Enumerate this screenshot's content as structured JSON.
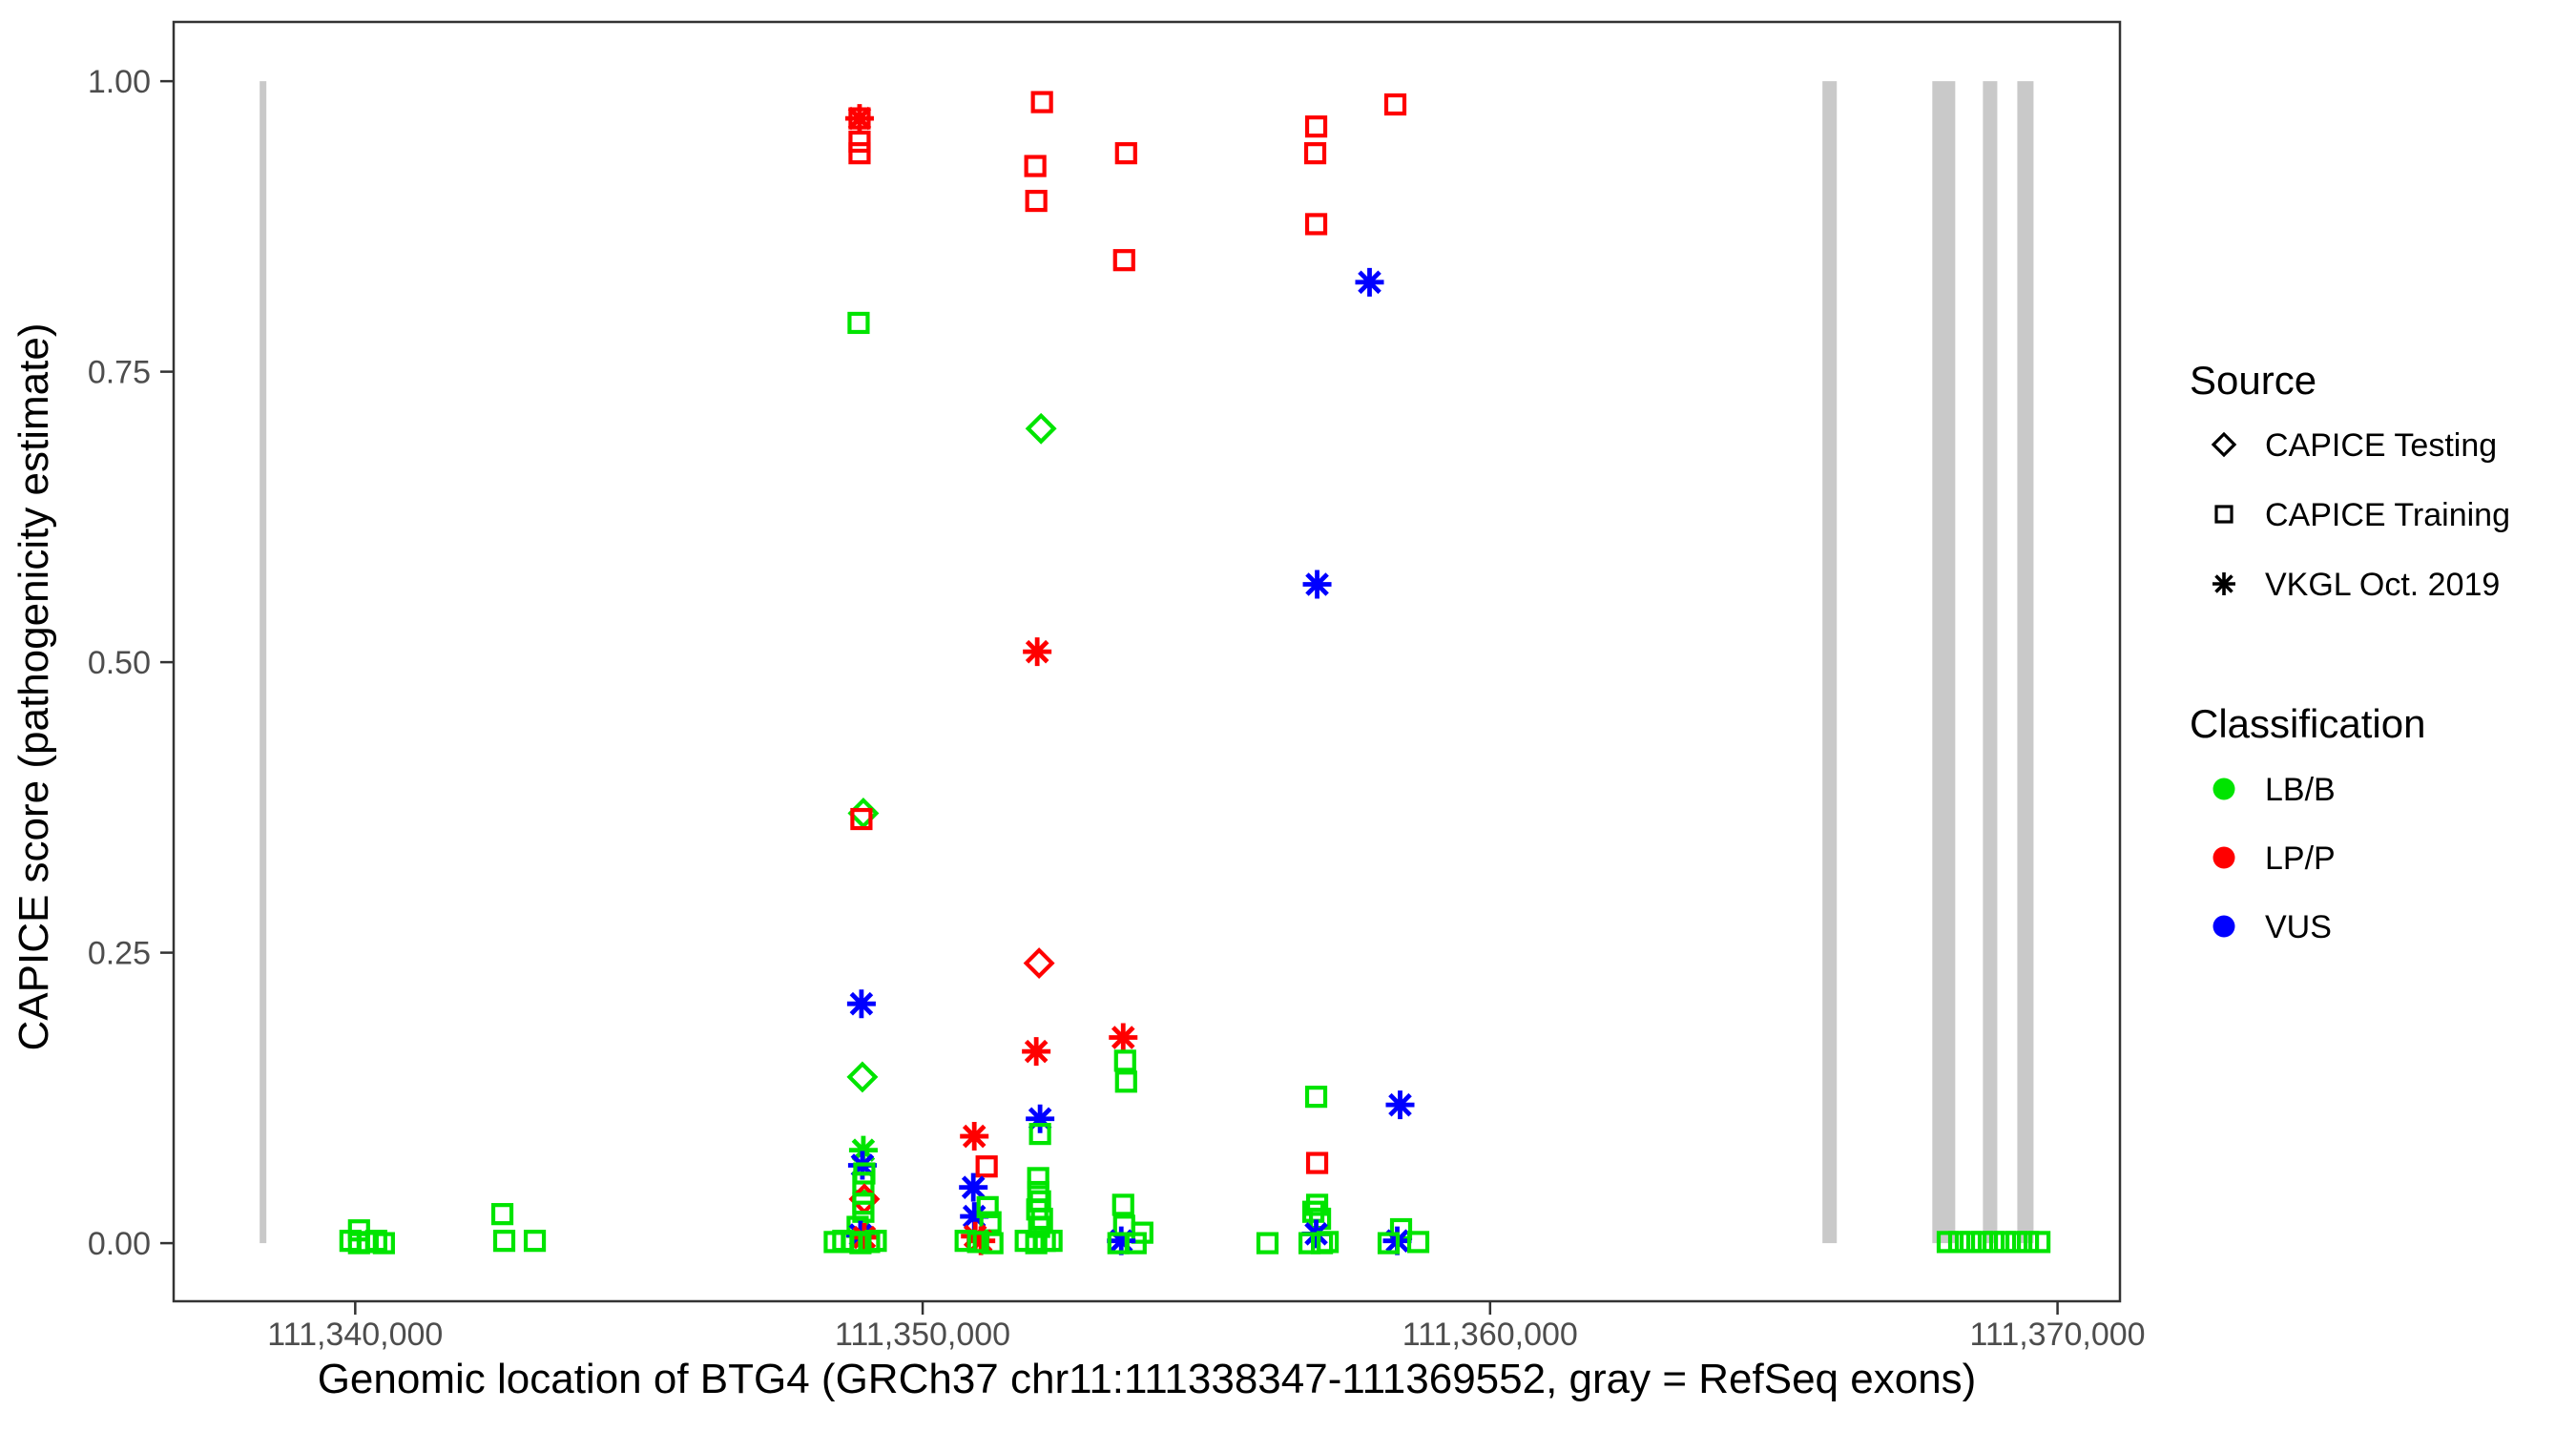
{
  "figure": {
    "background": "#FFFFFF",
    "panel_border_color": "#333333",
    "axis_title_color": "#000000",
    "tick_label_color": "#4D4D4D",
    "tick_mark_color": "#333333",
    "exon_color": "#C9C9C9",
    "legend_glyph_color": "#000000"
  },
  "chart_data": {
    "type": "scatter",
    "title": "",
    "xlabel": "Genomic location of BTG4 (GRCh37 chr11:111338347-111369552, gray = RefSeq exons)",
    "ylabel": "CAPICE score (pathogenicity estimate)",
    "xlim": [
      111336800,
      111371100
    ],
    "ylim": [
      -0.05,
      1.051
    ],
    "grid": "off",
    "x_ticks": [
      {
        "value": 111340000,
        "label": "111,340,000"
      },
      {
        "value": 111350000,
        "label": "111,350,000"
      },
      {
        "value": 111360000,
        "label": "111,360,000"
      },
      {
        "value": 111370000,
        "label": "111,370,000"
      }
    ],
    "y_ticks": [
      {
        "value": 0.0,
        "label": "0.00"
      },
      {
        "value": 0.25,
        "label": "0.25"
      },
      {
        "value": 0.5,
        "label": "0.50"
      },
      {
        "value": 0.75,
        "label": "0.75"
      },
      {
        "value": 1.0,
        "label": "1.00"
      }
    ],
    "exons_note": "gray vertical bars = RefSeq exons, drawn spanning score 0 to 1",
    "exons": [
      [
        111338316,
        111338434
      ],
      [
        111365857,
        111366110
      ],
      [
        111367793,
        111368197
      ],
      [
        111368685,
        111368938
      ],
      [
        111369291,
        111369577
      ]
    ],
    "marker_by_source": {
      "testing": "diamond",
      "training": "square",
      "vkgl": "asterisk"
    },
    "color_by_classification": {
      "LB/B": "#00E400",
      "LP/P": "#FF0000",
      "VUS": "#0000FF"
    },
    "point_format": [
      "genomic_position",
      "capice_score",
      "source",
      "classification"
    ],
    "points": [
      [
        111340067,
        0.011,
        "training",
        "LB/B"
      ],
      [
        111339916,
        0.002,
        "training",
        "LB/B"
      ],
      [
        111340067,
        0.0,
        "training",
        "LB/B"
      ],
      [
        111340219,
        0.001,
        "training",
        "LB/B"
      ],
      [
        111340370,
        0.002,
        "training",
        "LB/B"
      ],
      [
        111340505,
        0.0,
        "training",
        "LB/B"
      ],
      [
        111342593,
        0.025,
        "training",
        "LB/B"
      ],
      [
        111342626,
        0.002,
        "training",
        "LB/B"
      ],
      [
        111343165,
        0.002,
        "training",
        "LB/B"
      ],
      [
        111348888,
        0.968,
        "training",
        "LP/P"
      ],
      [
        111348888,
        0.968,
        "vkgl",
        "LP/P"
      ],
      [
        111348888,
        0.948,
        "training",
        "LP/P"
      ],
      [
        111348888,
        0.938,
        "training",
        "LP/P"
      ],
      [
        111348871,
        0.792,
        "training",
        "LB/B"
      ],
      [
        111348955,
        0.37,
        "testing",
        "LB/B"
      ],
      [
        111348921,
        0.365,
        "training",
        "LP/P"
      ],
      [
        111348921,
        0.206,
        "vkgl",
        "VUS"
      ],
      [
        111348938,
        0.143,
        "testing",
        "LB/B"
      ],
      [
        111348955,
        0.08,
        "vkgl",
        "LB/B"
      ],
      [
        111348938,
        0.067,
        "vkgl",
        "VUS"
      ],
      [
        111348972,
        0.06,
        "training",
        "LB/B"
      ],
      [
        111348955,
        0.052,
        "training",
        "LB/B"
      ],
      [
        111348972,
        0.038,
        "testing",
        "LP/P"
      ],
      [
        111348955,
        0.034,
        "training",
        "LB/B"
      ],
      [
        111348955,
        0.027,
        "training",
        "LB/B"
      ],
      [
        111348854,
        0.014,
        "training",
        "LB/B"
      ],
      [
        111348904,
        0.007,
        "vkgl",
        "VUS"
      ],
      [
        111348972,
        0.005,
        "vkgl",
        "LP/P"
      ],
      [
        111348451,
        0.001,
        "training",
        "LB/B"
      ],
      [
        111348601,
        0.002,
        "training",
        "LB/B"
      ],
      [
        111348753,
        0.001,
        "training",
        "LB/B"
      ],
      [
        111348904,
        0.0,
        "training",
        "LB/B"
      ],
      [
        111349056,
        0.001,
        "training",
        "LB/B"
      ],
      [
        111349174,
        0.002,
        "training",
        "LB/B"
      ],
      [
        111350910,
        0.092,
        "vkgl",
        "LP/P"
      ],
      [
        111351128,
        0.066,
        "training",
        "LP/P"
      ],
      [
        111350893,
        0.048,
        "vkgl",
        "VUS"
      ],
      [
        111350910,
        0.023,
        "vkgl",
        "VUS"
      ],
      [
        111351145,
        0.031,
        "training",
        "LB/B"
      ],
      [
        111351195,
        0.018,
        "training",
        "LB/B"
      ],
      [
        111350927,
        0.006,
        "vkgl",
        "LP/P"
      ],
      [
        111351027,
        0.002,
        "vkgl",
        "LP/P"
      ],
      [
        111350758,
        0.002,
        "training",
        "LB/B"
      ],
      [
        111350977,
        0.001,
        "training",
        "LB/B"
      ],
      [
        111351229,
        0.0,
        "training",
        "LB/B"
      ],
      [
        111352103,
        0.982,
        "training",
        "LP/P"
      ],
      [
        111351985,
        0.927,
        "training",
        "LP/P"
      ],
      [
        111352002,
        0.897,
        "training",
        "LP/P"
      ],
      [
        111352086,
        0.701,
        "testing",
        "LB/B"
      ],
      [
        111352019,
        0.509,
        "vkgl",
        "LP/P"
      ],
      [
        111352052,
        0.241,
        "testing",
        "LP/P"
      ],
      [
        111352002,
        0.165,
        "vkgl",
        "LP/P"
      ],
      [
        111352069,
        0.107,
        "vkgl",
        "VUS"
      ],
      [
        111352069,
        0.094,
        "training",
        "LB/B"
      ],
      [
        111352036,
        0.056,
        "training",
        "LB/B"
      ],
      [
        111352036,
        0.044,
        "training",
        "LB/B"
      ],
      [
        111352069,
        0.036,
        "training",
        "LB/B"
      ],
      [
        111352019,
        0.029,
        "training",
        "LB/B"
      ],
      [
        111352103,
        0.021,
        "training",
        "LB/B"
      ],
      [
        111352052,
        0.014,
        "training",
        "LB/B"
      ],
      [
        111351817,
        0.002,
        "training",
        "LB/B"
      ],
      [
        111352002,
        0.0,
        "training",
        "LB/B"
      ],
      [
        111352153,
        0.002,
        "training",
        "LB/B"
      ],
      [
        111352271,
        0.002,
        "training",
        "LB/B"
      ],
      [
        111353585,
        0.938,
        "training",
        "LP/P"
      ],
      [
        111353551,
        0.846,
        "training",
        "LP/P"
      ],
      [
        111353534,
        0.177,
        "vkgl",
        "LP/P"
      ],
      [
        111353568,
        0.157,
        "training",
        "LB/B"
      ],
      [
        111353585,
        0.139,
        "training",
        "LB/B"
      ],
      [
        111353534,
        0.033,
        "training",
        "LB/B"
      ],
      [
        111353551,
        0.015,
        "training",
        "LB/B"
      ],
      [
        111353871,
        0.009,
        "training",
        "LB/B"
      ],
      [
        111353500,
        0.002,
        "vkgl",
        "VUS"
      ],
      [
        111353450,
        0.0,
        "training",
        "LB/B"
      ],
      [
        111353753,
        0.0,
        "training",
        "LB/B"
      ],
      [
        111356077,
        0.0,
        "training",
        "LB/B"
      ],
      [
        111358330,
        0.98,
        "training",
        "LP/P"
      ],
      [
        111356935,
        0.961,
        "training",
        "LP/P"
      ],
      [
        111356918,
        0.938,
        "training",
        "LP/P"
      ],
      [
        111356935,
        0.877,
        "training",
        "LP/P"
      ],
      [
        111357876,
        0.827,
        "vkgl",
        "VUS"
      ],
      [
        111356952,
        0.567,
        "vkgl",
        "VUS"
      ],
      [
        111356935,
        0.126,
        "training",
        "LB/B"
      ],
      [
        111358414,
        0.119,
        "vkgl",
        "VUS"
      ],
      [
        111356952,
        0.069,
        "training",
        "LP/P"
      ],
      [
        111356952,
        0.033,
        "training",
        "LB/B"
      ],
      [
        111356885,
        0.027,
        "training",
        "LB/B"
      ],
      [
        111357003,
        0.021,
        "training",
        "LB/B"
      ],
      [
        111356935,
        0.008,
        "vkgl",
        "VUS"
      ],
      [
        111356818,
        0.0,
        "training",
        "LB/B"
      ],
      [
        111357037,
        0.0,
        "training",
        "LB/B"
      ],
      [
        111357138,
        0.001,
        "training",
        "LB/B"
      ],
      [
        111358431,
        0.012,
        "training",
        "LB/B"
      ],
      [
        111358364,
        0.002,
        "vkgl",
        "VUS"
      ],
      [
        111358212,
        0.0,
        "training",
        "LB/B"
      ],
      [
        111358734,
        0.001,
        "training",
        "LB/B"
      ],
      [
        111368065,
        0.001,
        "training",
        "LB/B"
      ],
      [
        111368267,
        0.001,
        "training",
        "LB/B"
      ],
      [
        111368469,
        0.001,
        "training",
        "LB/B"
      ],
      [
        111368671,
        0.001,
        "training",
        "LB/B"
      ],
      [
        111368873,
        0.001,
        "training",
        "LB/B"
      ],
      [
        111369075,
        0.001,
        "training",
        "LB/B"
      ],
      [
        111369277,
        0.001,
        "training",
        "LB/B"
      ],
      [
        111369479,
        0.001,
        "training",
        "LB/B"
      ],
      [
        111369681,
        0.001,
        "training",
        "LB/B"
      ]
    ]
  },
  "legend": {
    "source": {
      "title": "Source",
      "items": [
        {
          "label": "CAPICE Testing",
          "marker": "diamond"
        },
        {
          "label": "CAPICE Training",
          "marker": "square"
        },
        {
          "label": "VKGL Oct. 2019",
          "marker": "asterisk"
        }
      ]
    },
    "classification": {
      "title": "Classification",
      "items": [
        {
          "label": "LB/B",
          "color": "#00E400"
        },
        {
          "label": "LP/P",
          "color": "#FF0000"
        },
        {
          "label": "VUS",
          "color": "#0000FF"
        }
      ]
    }
  }
}
